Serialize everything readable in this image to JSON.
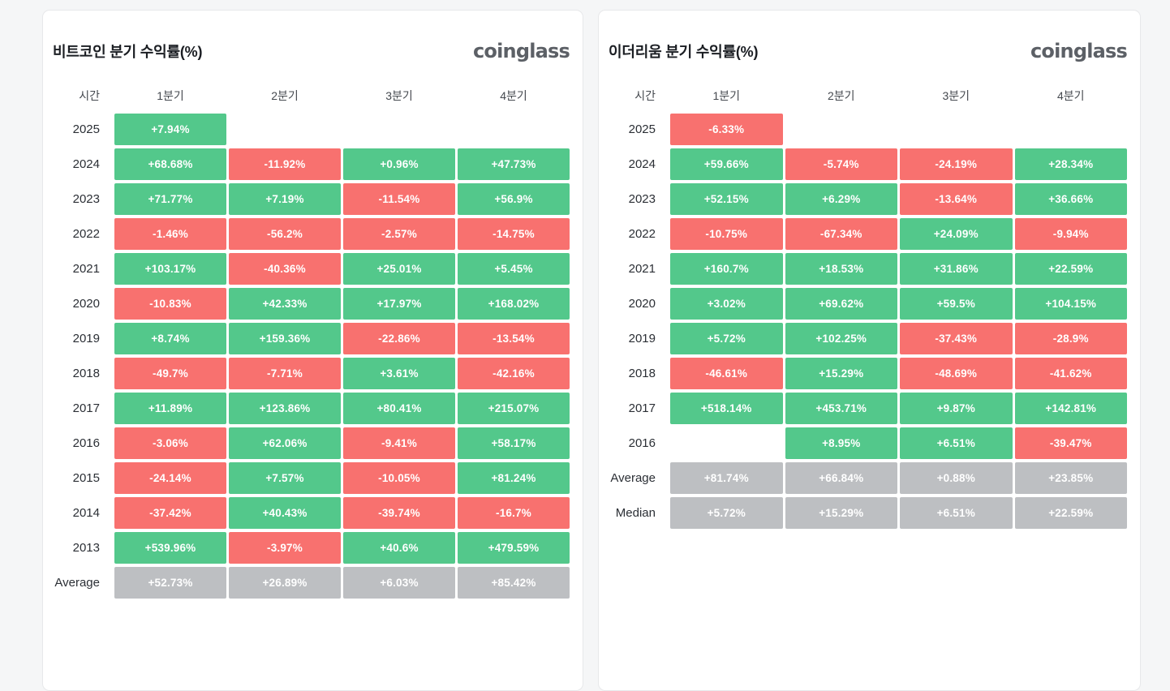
{
  "colors": {
    "positive": "#53c88b",
    "negative": "#f8716f",
    "neutral": "#bdbfc2",
    "page_background": "#f5f6f7"
  },
  "brand": "coinglass",
  "chart_data": [
    {
      "type": "table",
      "title": "비트코인 분기 수익률(%)",
      "columns": [
        "시간",
        "1분기",
        "2분기",
        "3분기",
        "4분기"
      ],
      "rows": [
        {
          "label": "2025",
          "cells": [
            {
              "v": "+7.94%",
              "t": "positive"
            },
            null,
            null,
            null
          ]
        },
        {
          "label": "2024",
          "cells": [
            {
              "v": "+68.68%",
              "t": "positive"
            },
            {
              "v": "-11.92%",
              "t": "negative"
            },
            {
              "v": "+0.96%",
              "t": "positive"
            },
            {
              "v": "+47.73%",
              "t": "positive"
            }
          ]
        },
        {
          "label": "2023",
          "cells": [
            {
              "v": "+71.77%",
              "t": "positive"
            },
            {
              "v": "+7.19%",
              "t": "positive"
            },
            {
              "v": "-11.54%",
              "t": "negative"
            },
            {
              "v": "+56.9%",
              "t": "positive"
            }
          ]
        },
        {
          "label": "2022",
          "cells": [
            {
              "v": "-1.46%",
              "t": "negative"
            },
            {
              "v": "-56.2%",
              "t": "negative"
            },
            {
              "v": "-2.57%",
              "t": "negative"
            },
            {
              "v": "-14.75%",
              "t": "negative"
            }
          ]
        },
        {
          "label": "2021",
          "cells": [
            {
              "v": "+103.17%",
              "t": "positive"
            },
            {
              "v": "-40.36%",
              "t": "negative"
            },
            {
              "v": "+25.01%",
              "t": "positive"
            },
            {
              "v": "+5.45%",
              "t": "positive"
            }
          ]
        },
        {
          "label": "2020",
          "cells": [
            {
              "v": "-10.83%",
              "t": "negative"
            },
            {
              "v": "+42.33%",
              "t": "positive"
            },
            {
              "v": "+17.97%",
              "t": "positive"
            },
            {
              "v": "+168.02%",
              "t": "positive"
            }
          ]
        },
        {
          "label": "2019",
          "cells": [
            {
              "v": "+8.74%",
              "t": "positive"
            },
            {
              "v": "+159.36%",
              "t": "positive"
            },
            {
              "v": "-22.86%",
              "t": "negative"
            },
            {
              "v": "-13.54%",
              "t": "negative"
            }
          ]
        },
        {
          "label": "2018",
          "cells": [
            {
              "v": "-49.7%",
              "t": "negative"
            },
            {
              "v": "-7.71%",
              "t": "negative"
            },
            {
              "v": "+3.61%",
              "t": "positive"
            },
            {
              "v": "-42.16%",
              "t": "negative"
            }
          ]
        },
        {
          "label": "2017",
          "cells": [
            {
              "v": "+11.89%",
              "t": "positive"
            },
            {
              "v": "+123.86%",
              "t": "positive"
            },
            {
              "v": "+80.41%",
              "t": "positive"
            },
            {
              "v": "+215.07%",
              "t": "positive"
            }
          ]
        },
        {
          "label": "2016",
          "cells": [
            {
              "v": "-3.06%",
              "t": "negative"
            },
            {
              "v": "+62.06%",
              "t": "positive"
            },
            {
              "v": "-9.41%",
              "t": "negative"
            },
            {
              "v": "+58.17%",
              "t": "positive"
            }
          ]
        },
        {
          "label": "2015",
          "cells": [
            {
              "v": "-24.14%",
              "t": "negative"
            },
            {
              "v": "+7.57%",
              "t": "positive"
            },
            {
              "v": "-10.05%",
              "t": "negative"
            },
            {
              "v": "+81.24%",
              "t": "positive"
            }
          ]
        },
        {
          "label": "2014",
          "cells": [
            {
              "v": "-37.42%",
              "t": "negative"
            },
            {
              "v": "+40.43%",
              "t": "positive"
            },
            {
              "v": "-39.74%",
              "t": "negative"
            },
            {
              "v": "-16.7%",
              "t": "negative"
            }
          ]
        },
        {
          "label": "2013",
          "cells": [
            {
              "v": "+539.96%",
              "t": "positive"
            },
            {
              "v": "-3.97%",
              "t": "negative"
            },
            {
              "v": "+40.6%",
              "t": "positive"
            },
            {
              "v": "+479.59%",
              "t": "positive"
            }
          ]
        },
        {
          "label": "Average",
          "cells": [
            {
              "v": "+52.73%",
              "t": "neutral"
            },
            {
              "v": "+26.89%",
              "t": "neutral"
            },
            {
              "v": "+6.03%",
              "t": "neutral"
            },
            {
              "v": "+85.42%",
              "t": "neutral"
            }
          ]
        }
      ]
    },
    {
      "type": "table",
      "title": "이더리움 분기 수익률(%)",
      "columns": [
        "시간",
        "1분기",
        "2분기",
        "3분기",
        "4분기"
      ],
      "rows": [
        {
          "label": "2025",
          "cells": [
            {
              "v": "-6.33%",
              "t": "negative"
            },
            null,
            null,
            null
          ]
        },
        {
          "label": "2024",
          "cells": [
            {
              "v": "+59.66%",
              "t": "positive"
            },
            {
              "v": "-5.74%",
              "t": "negative"
            },
            {
              "v": "-24.19%",
              "t": "negative"
            },
            {
              "v": "+28.34%",
              "t": "positive"
            }
          ]
        },
        {
          "label": "2023",
          "cells": [
            {
              "v": "+52.15%",
              "t": "positive"
            },
            {
              "v": "+6.29%",
              "t": "positive"
            },
            {
              "v": "-13.64%",
              "t": "negative"
            },
            {
              "v": "+36.66%",
              "t": "positive"
            }
          ]
        },
        {
          "label": "2022",
          "cells": [
            {
              "v": "-10.75%",
              "t": "negative"
            },
            {
              "v": "-67.34%",
              "t": "negative"
            },
            {
              "v": "+24.09%",
              "t": "positive"
            },
            {
              "v": "-9.94%",
              "t": "negative"
            }
          ]
        },
        {
          "label": "2021",
          "cells": [
            {
              "v": "+160.7%",
              "t": "positive"
            },
            {
              "v": "+18.53%",
              "t": "positive"
            },
            {
              "v": "+31.86%",
              "t": "positive"
            },
            {
              "v": "+22.59%",
              "t": "positive"
            }
          ]
        },
        {
          "label": "2020",
          "cells": [
            {
              "v": "+3.02%",
              "t": "positive"
            },
            {
              "v": "+69.62%",
              "t": "positive"
            },
            {
              "v": "+59.5%",
              "t": "positive"
            },
            {
              "v": "+104.15%",
              "t": "positive"
            }
          ]
        },
        {
          "label": "2019",
          "cells": [
            {
              "v": "+5.72%",
              "t": "positive"
            },
            {
              "v": "+102.25%",
              "t": "positive"
            },
            {
              "v": "-37.43%",
              "t": "negative"
            },
            {
              "v": "-28.9%",
              "t": "negative"
            }
          ]
        },
        {
          "label": "2018",
          "cells": [
            {
              "v": "-46.61%",
              "t": "negative"
            },
            {
              "v": "+15.29%",
              "t": "positive"
            },
            {
              "v": "-48.69%",
              "t": "negative"
            },
            {
              "v": "-41.62%",
              "t": "negative"
            }
          ]
        },
        {
          "label": "2017",
          "cells": [
            {
              "v": "+518.14%",
              "t": "positive"
            },
            {
              "v": "+453.71%",
              "t": "positive"
            },
            {
              "v": "+9.87%",
              "t": "positive"
            },
            {
              "v": "+142.81%",
              "t": "positive"
            }
          ]
        },
        {
          "label": "2016",
          "cells": [
            null,
            {
              "v": "+8.95%",
              "t": "positive"
            },
            {
              "v": "+6.51%",
              "t": "positive"
            },
            {
              "v": "-39.47%",
              "t": "negative"
            }
          ]
        },
        {
          "label": "Average",
          "cells": [
            {
              "v": "+81.74%",
              "t": "neutral"
            },
            {
              "v": "+66.84%",
              "t": "neutral"
            },
            {
              "v": "+0.88%",
              "t": "neutral"
            },
            {
              "v": "+23.85%",
              "t": "neutral"
            }
          ]
        },
        {
          "label": "Median",
          "cells": [
            {
              "v": "+5.72%",
              "t": "neutral"
            },
            {
              "v": "+15.29%",
              "t": "neutral"
            },
            {
              "v": "+6.51%",
              "t": "neutral"
            },
            {
              "v": "+22.59%",
              "t": "neutral"
            }
          ]
        }
      ]
    }
  ]
}
